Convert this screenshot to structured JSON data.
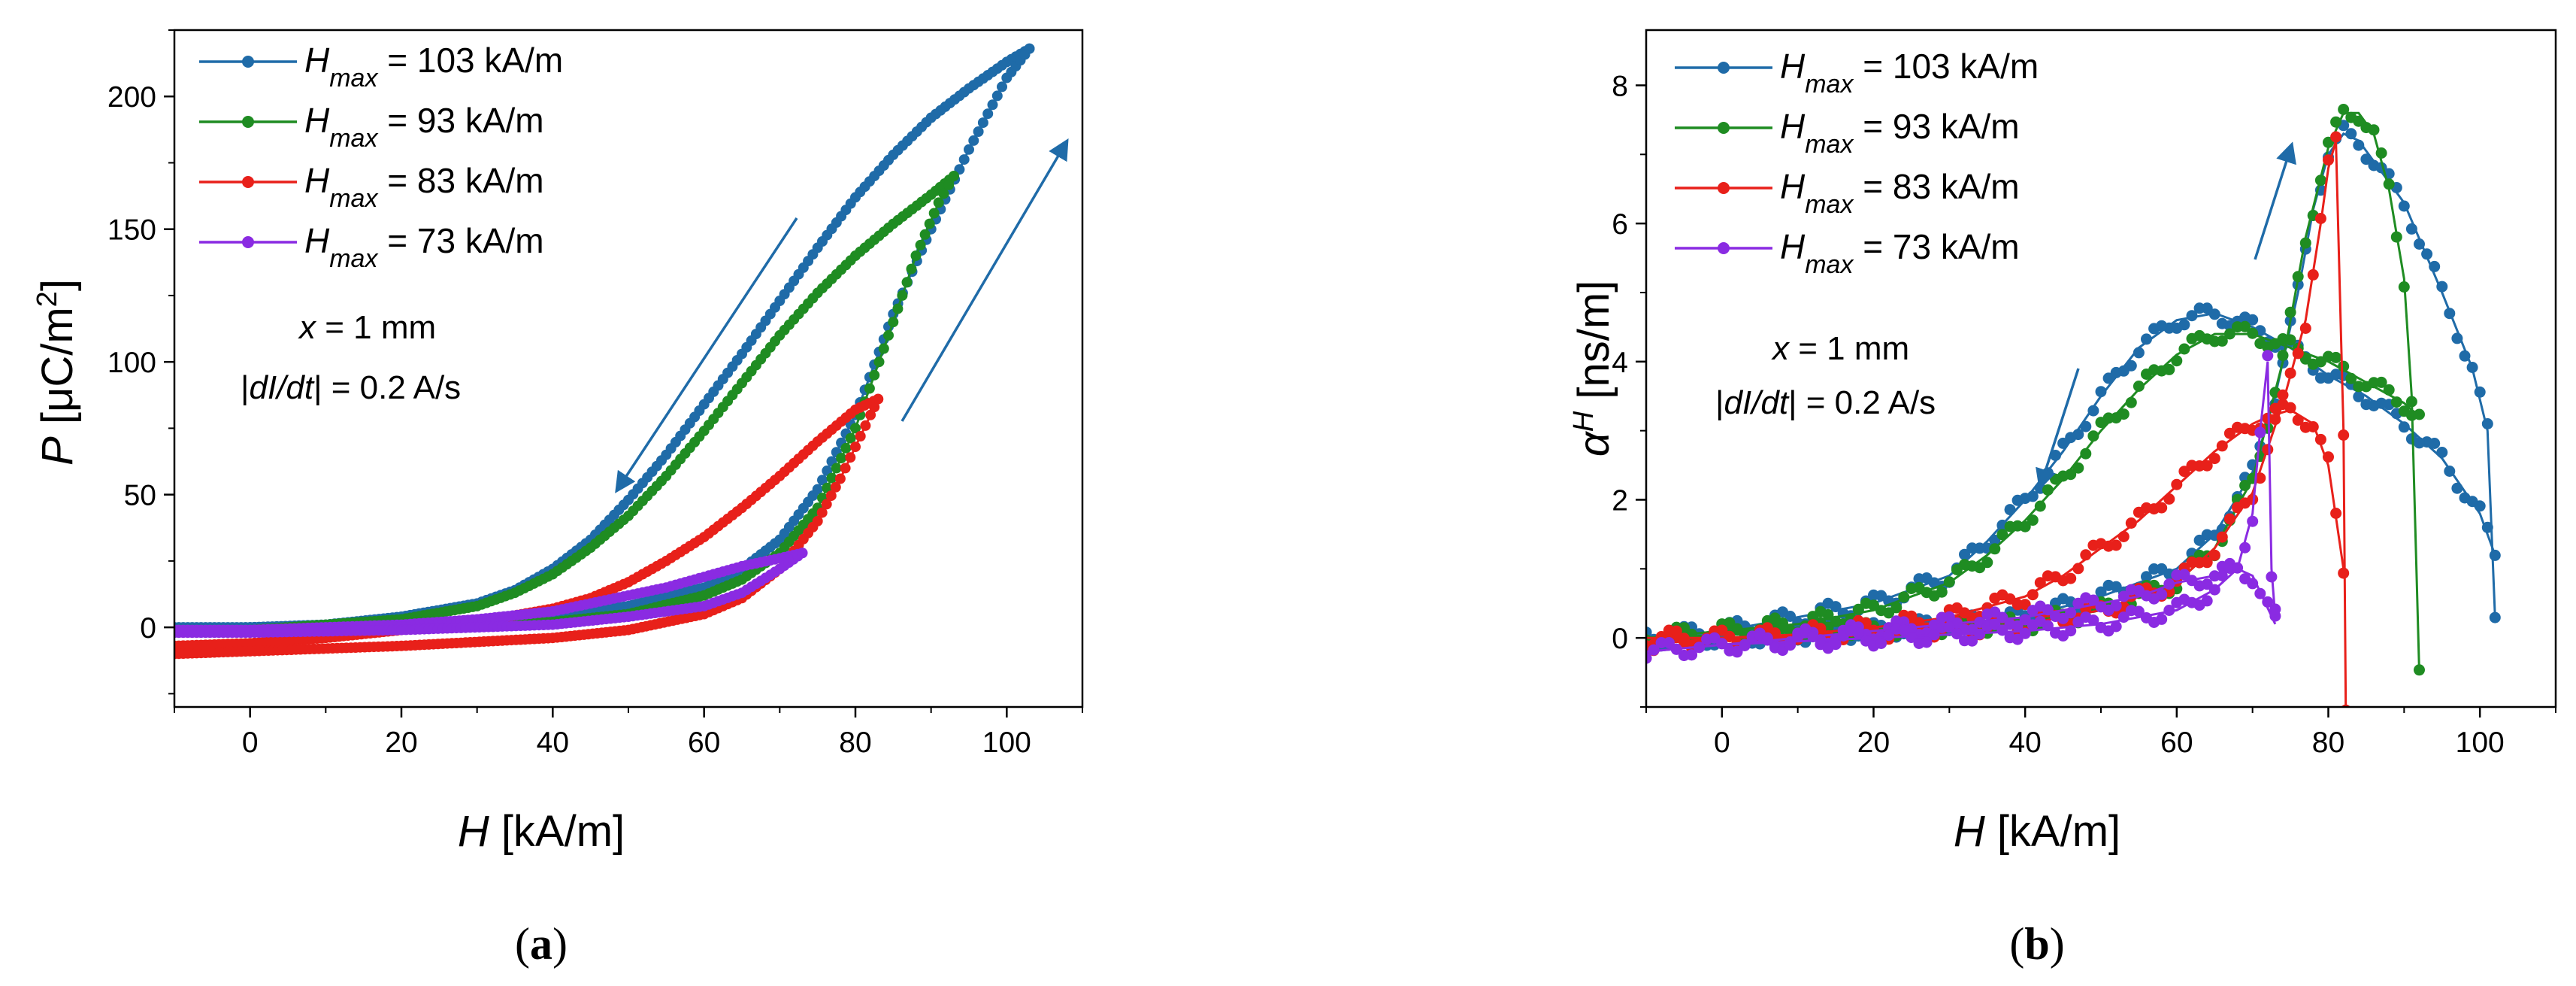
{
  "chart_data": [
    {
      "id": "a",
      "type": "line",
      "caption": "(a)",
      "xlabel_var": "H",
      "xlabel_unit": " [kA/m]",
      "ylabel_var": "P",
      "ylabel_unit_pre": " [μC/m",
      "ylabel_unit_sup": "2",
      "ylabel_unit_post": "]",
      "xlim": [
        -10,
        110
      ],
      "ylim": [
        -30,
        225
      ],
      "xticks": [
        0,
        20,
        40,
        60,
        80,
        100
      ],
      "yticks": [
        0,
        50,
        100,
        150,
        200
      ],
      "annotation_var": "x",
      "annotation_line1_rest": " = 1 mm",
      "annotation_line2_pre": "|",
      "annotation_line2_var": "dI/dt",
      "annotation_line2_rest": "| = 0.2 A/s",
      "series": [
        {
          "name_var": "H",
          "name_sub": "max",
          "name_rest": " = 103 kA/m",
          "color": "#1f6ba8",
          "hmax": 103,
          "pmax": 218,
          "ascending": [
            [
              -10,
              0
            ],
            [
              0,
              0
            ],
            [
              20,
              1
            ],
            [
              40,
              4
            ],
            [
              50,
              8
            ],
            [
              60,
              15
            ],
            [
              65,
              22
            ],
            [
              70,
              33
            ],
            [
              75,
              52
            ],
            [
              80,
              80
            ],
            [
              85,
              118
            ],
            [
              90,
              150
            ],
            [
              95,
              180
            ],
            [
              100,
              207
            ],
            [
              103,
              218
            ]
          ],
          "descending": [
            [
              103,
              218
            ],
            [
              100,
              213
            ],
            [
              95,
              203
            ],
            [
              90,
              192
            ],
            [
              85,
              178
            ],
            [
              80,
              162
            ],
            [
              75,
              143
            ],
            [
              70,
              123
            ],
            [
              65,
              103
            ],
            [
              60,
              84
            ],
            [
              55,
              65
            ],
            [
              50,
              48
            ],
            [
              45,
              33
            ],
            [
              40,
              22
            ],
            [
              35,
              14
            ],
            [
              30,
              9
            ],
            [
              20,
              4
            ],
            [
              10,
              1
            ],
            [
              0,
              0
            ],
            [
              -10,
              -1
            ]
          ]
        },
        {
          "name_var": "H",
          "name_sub": "max",
          "name_rest": " = 93 kA/m",
          "color": "#1f8c22",
          "hmax": 93,
          "pmax": 170,
          "ascending": [
            [
              -10,
              -1
            ],
            [
              0,
              -1
            ],
            [
              20,
              0
            ],
            [
              40,
              2
            ],
            [
              50,
              5
            ],
            [
              60,
              12
            ],
            [
              65,
              18
            ],
            [
              70,
              28
            ],
            [
              75,
              45
            ],
            [
              80,
              75
            ],
            [
              85,
              115
            ],
            [
              88,
              140
            ],
            [
              91,
              160
            ],
            [
              93,
              170
            ]
          ],
          "descending": [
            [
              93,
              170
            ],
            [
              90,
              163
            ],
            [
              85,
              152
            ],
            [
              80,
              140
            ],
            [
              75,
              126
            ],
            [
              70,
              110
            ],
            [
              65,
              92
            ],
            [
              60,
              74
            ],
            [
              55,
              57
            ],
            [
              50,
              42
            ],
            [
              45,
              30
            ],
            [
              40,
              20
            ],
            [
              35,
              13
            ],
            [
              30,
              8
            ],
            [
              20,
              3
            ],
            [
              10,
              1
            ],
            [
              0,
              -1
            ],
            [
              -10,
              -2
            ]
          ]
        },
        {
          "name_var": "H",
          "name_sub": "max",
          "name_rest": " = 83 kA/m",
          "color": "#e8201a",
          "hmax": 83,
          "pmax": 86,
          "ascending": [
            [
              -10,
              -10
            ],
            [
              0,
              -9
            ],
            [
              20,
              -7
            ],
            [
              40,
              -4
            ],
            [
              50,
              -1
            ],
            [
              60,
              5
            ],
            [
              65,
              11
            ],
            [
              70,
              22
            ],
            [
              75,
              40
            ],
            [
              78,
              56
            ],
            [
              80,
              68
            ],
            [
              82,
              80
            ],
            [
              83,
              86
            ]
          ],
          "descending": [
            [
              83,
              86
            ],
            [
              80,
              82
            ],
            [
              75,
              70
            ],
            [
              70,
              57
            ],
            [
              65,
              45
            ],
            [
              60,
              34
            ],
            [
              55,
              25
            ],
            [
              50,
              17
            ],
            [
              45,
              11
            ],
            [
              40,
              7
            ],
            [
              30,
              2
            ],
            [
              20,
              -1
            ],
            [
              10,
              -4
            ],
            [
              0,
              -6
            ],
            [
              -10,
              -7
            ]
          ]
        },
        {
          "name_var": "H",
          "name_sub": "max",
          "name_rest": " = 73 kA/m",
          "color": "#8a2be2",
          "hmax": 73,
          "pmax": 28,
          "ascending": [
            [
              -10,
              -2
            ],
            [
              0,
              -2
            ],
            [
              20,
              -1
            ],
            [
              40,
              1
            ],
            [
              50,
              4
            ],
            [
              60,
              8
            ],
            [
              65,
              13
            ],
            [
              70,
              22
            ],
            [
              73,
              28
            ]
          ],
          "descending": [
            [
              73,
              28
            ],
            [
              70,
              26
            ],
            [
              65,
              23
            ],
            [
              60,
              19
            ],
            [
              55,
              15
            ],
            [
              50,
              12
            ],
            [
              45,
              9
            ],
            [
              40,
              6
            ],
            [
              30,
              3
            ],
            [
              20,
              1
            ],
            [
              10,
              0
            ],
            [
              0,
              -1
            ],
            [
              -10,
              -1
            ]
          ]
        }
      ]
    },
    {
      "id": "b",
      "type": "scatter",
      "caption": "(b)",
      "xlabel_var": "H",
      "xlabel_unit": " [kA/m]",
      "ylabel_var": "α",
      "ylabel_sup": "H",
      "ylabel_unit": " [ns/m]",
      "xlim": [
        -10,
        110
      ],
      "ylim": [
        -1,
        8.8
      ],
      "xticks": [
        0,
        20,
        40,
        60,
        80,
        100
      ],
      "yticks": [
        0,
        2,
        4,
        6,
        8
      ],
      "annotation_var": "x",
      "annotation_line1_rest": " = 1 mm",
      "annotation_line2_pre": "|",
      "annotation_line2_var": "dI/dt",
      "annotation_line2_rest": "| = 0.2 A/s",
      "series": [
        {
          "name_var": "H",
          "name_sub": "max",
          "name_rest": " = 103 kA/m",
          "color": "#1f6ba8",
          "ascending": [
            [
              -10,
              0
            ],
            [
              0,
              0
            ],
            [
              20,
              0.1
            ],
            [
              40,
              0.3
            ],
            [
              50,
              0.6
            ],
            [
              60,
              1.0
            ],
            [
              65,
              1.5
            ],
            [
              70,
              2.4
            ],
            [
              73,
              3.5
            ],
            [
              76,
              5.0
            ],
            [
              78,
              6.2
            ],
            [
              80,
              7.0
            ],
            [
              82,
              7.3
            ],
            [
              84,
              7.2
            ],
            [
              86,
              6.9
            ],
            [
              90,
              6.3
            ],
            [
              95,
              5.0
            ],
            [
              99,
              3.9
            ],
            [
              101,
              3.0
            ],
            [
              102,
              0.3
            ]
          ],
          "descending": [
            [
              102,
              1.2
            ],
            [
              100,
              1.8
            ],
            [
              95,
              2.6
            ],
            [
              90,
              3.1
            ],
            [
              85,
              3.5
            ],
            [
              80,
              3.8
            ],
            [
              75,
              4.2
            ],
            [
              70,
              4.5
            ],
            [
              65,
              4.7
            ],
            [
              60,
              4.6
            ],
            [
              55,
              4.2
            ],
            [
              50,
              3.5
            ],
            [
              45,
              2.7
            ],
            [
              40,
              2.0
            ],
            [
              35,
              1.4
            ],
            [
              30,
              0.9
            ],
            [
              20,
              0.5
            ],
            [
              10,
              0.3
            ],
            [
              0,
              0.1
            ],
            [
              -10,
              0
            ]
          ]
        },
        {
          "name_var": "H",
          "name_sub": "max",
          "name_rest": " = 93 kA/m",
          "color": "#1f8c22",
          "ascending": [
            [
              -10,
              0
            ],
            [
              0,
              0.1
            ],
            [
              20,
              0.1
            ],
            [
              40,
              0.2
            ],
            [
              50,
              0.4
            ],
            [
              60,
              0.8
            ],
            [
              65,
              1.3
            ],
            [
              70,
              2.3
            ],
            [
              74,
              4.0
            ],
            [
              77,
              5.8
            ],
            [
              80,
              7.1
            ],
            [
              82,
              7.6
            ],
            [
              84,
              7.6
            ],
            [
              86,
              7.3
            ],
            [
              88,
              6.5
            ],
            [
              90,
              5.2
            ],
            [
              91,
              3.5
            ],
            [
              92,
              -0.5
            ]
          ],
          "descending": [
            [
              92,
              3.2
            ],
            [
              90,
              3.4
            ],
            [
              85,
              3.7
            ],
            [
              80,
              4.0
            ],
            [
              75,
              4.2
            ],
            [
              70,
              4.4
            ],
            [
              65,
              4.4
            ],
            [
              60,
              4.1
            ],
            [
              55,
              3.6
            ],
            [
              50,
              3.0
            ],
            [
              45,
              2.3
            ],
            [
              40,
              1.7
            ],
            [
              35,
              1.2
            ],
            [
              30,
              0.8
            ],
            [
              20,
              0.4
            ],
            [
              10,
              0.2
            ],
            [
              0,
              0.1
            ],
            [
              -10,
              0
            ]
          ]
        },
        {
          "name_var": "H",
          "name_sub": "max",
          "name_rest": " = 83 kA/m",
          "color": "#e8201a",
          "ascending": [
            [
              -10,
              0
            ],
            [
              0,
              0
            ],
            [
              20,
              0.05
            ],
            [
              40,
              0.2
            ],
            [
              50,
              0.4
            ],
            [
              60,
              0.8
            ],
            [
              65,
              1.3
            ],
            [
              70,
              2.1
            ],
            [
              74,
              3.4
            ],
            [
              77,
              4.6
            ],
            [
              79,
              6.0
            ],
            [
              80,
              6.8
            ],
            [
              81,
              7.2
            ],
            [
              82,
              3.0
            ],
            [
              82.3,
              -1.0
            ]
          ],
          "descending": [
            [
              82,
              1.0
            ],
            [
              80,
              2.5
            ],
            [
              78,
              3.1
            ],
            [
              75,
              3.3
            ],
            [
              72,
              3.2
            ],
            [
              70,
              3.1
            ],
            [
              65,
              2.7
            ],
            [
              60,
              2.2
            ],
            [
              55,
              1.7
            ],
            [
              50,
              1.3
            ],
            [
              45,
              0.9
            ],
            [
              40,
              0.6
            ],
            [
              30,
              0.3
            ],
            [
              20,
              0.15
            ],
            [
              10,
              0.05
            ],
            [
              0,
              0
            ],
            [
              -10,
              -0.1
            ]
          ]
        },
        {
          "name_var": "H",
          "name_sub": "max",
          "name_rest": " = 73 kA/m",
          "color": "#8a2be2",
          "ascending": [
            [
              -10,
              -0.2
            ],
            [
              0,
              -0.1
            ],
            [
              20,
              0
            ],
            [
              40,
              0.1
            ],
            [
              50,
              0.2
            ],
            [
              60,
              0.4
            ],
            [
              65,
              0.7
            ],
            [
              68,
              1.0
            ],
            [
              70,
              1.8
            ],
            [
              71,
              3.0
            ],
            [
              72,
              4.0
            ],
            [
              72.5,
              1.0
            ],
            [
              73,
              0.3
            ]
          ],
          "descending": [
            [
              73,
              0.2
            ],
            [
              70,
              0.9
            ],
            [
              68,
              1.0
            ],
            [
              65,
              0.9
            ],
            [
              60,
              0.8
            ],
            [
              55,
              0.6
            ],
            [
              50,
              0.5
            ],
            [
              45,
              0.4
            ],
            [
              40,
              0.3
            ],
            [
              30,
              0.2
            ],
            [
              20,
              0.1
            ],
            [
              10,
              0
            ],
            [
              0,
              -0.1
            ],
            [
              -10,
              -0.2
            ]
          ]
        }
      ]
    }
  ]
}
